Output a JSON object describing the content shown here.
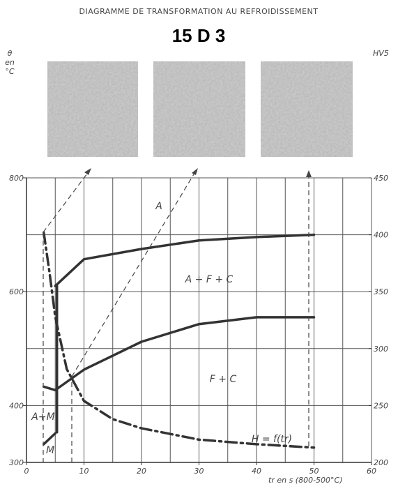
{
  "chart_data": {
    "type": "line",
    "supertitle": "DIAGRAMME DE TRANSFORMATION AU REFROIDISSEMENT",
    "title": "15 D 3",
    "y_label": [
      "θ",
      "en",
      "°C"
    ],
    "y2_label": "HV5",
    "x_label": "tr en s (800-500°C)",
    "xlim": [
      0,
      60
    ],
    "xticks": [
      0,
      10,
      20,
      30,
      40,
      50,
      60
    ],
    "xgrid": [
      0,
      5,
      10,
      15,
      20,
      25,
      30,
      35,
      40,
      45,
      50,
      55,
      60
    ],
    "ylim": [
      300,
      800
    ],
    "yticks": [
      300,
      400,
      600,
      800
    ],
    "ygrid": [
      300,
      400,
      500,
      600,
      700,
      800
    ],
    "y2lim": [
      200,
      450
    ],
    "y2ticks": [
      200,
      250,
      300,
      350,
      400,
      450
    ],
    "grid": true,
    "annotations": [
      "A",
      "A + F + C",
      "F + C",
      "A+M",
      "M",
      "H = f(tr)"
    ],
    "series": [
      {
        "color": "#333333",
        "x": [
          5,
          10,
          20,
          30,
          40,
          50
        ],
        "values": [
          610,
          657,
          675,
          690,
          696,
          700
        ]
      },
      {
        "color": "#333333",
        "x": [
          5,
          10,
          20,
          30,
          40,
          50
        ],
        "values": [
          427,
          463,
          512,
          543,
          555,
          555
        ]
      },
      {
        "color": "#333333",
        "x": [
          5.3,
          5.3
        ],
        "values": [
          610,
          353
        ]
      },
      {
        "color": "#333333",
        "x": [
          3,
          5
        ],
        "values": [
          433,
          427
        ]
      },
      {
        "color": "#333333",
        "x": [
          3,
          5
        ],
        "values": [
          332,
          351
        ]
      },
      {
        "color": "#333333",
        "axis": "y2",
        "dash": "dash-dot",
        "x": [
          3,
          4,
          5,
          7,
          10,
          15,
          20,
          30,
          40,
          50
        ],
        "values": [
          402,
          367,
          328,
          282,
          254,
          238,
          230,
          220,
          216,
          213
        ]
      }
    ]
  }
}
